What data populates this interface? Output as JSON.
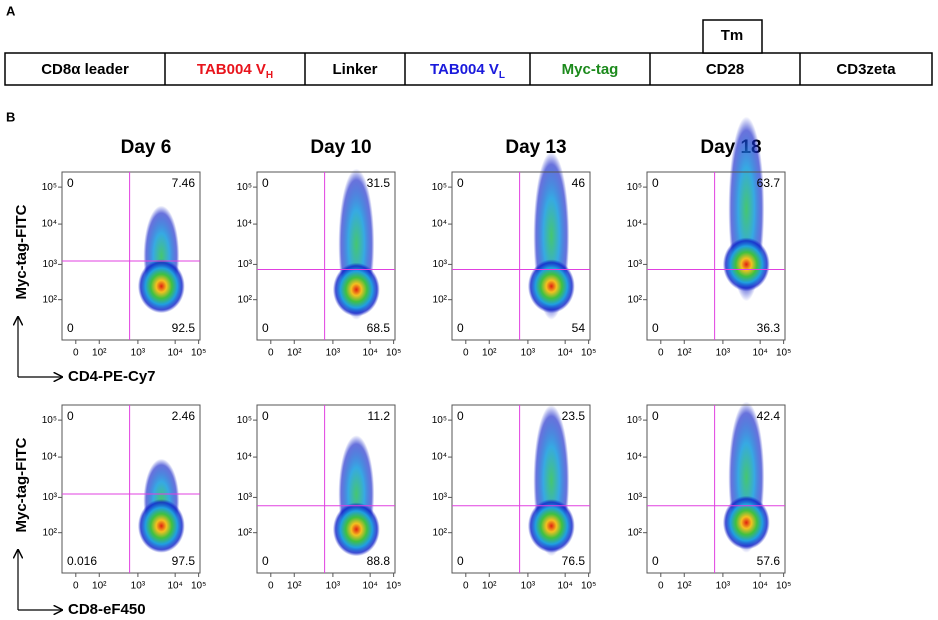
{
  "panel_a": {
    "label": "A",
    "tm": "Tm",
    "segments": [
      {
        "text": "CD8α leader",
        "color": "#000000"
      },
      {
        "text": "TAB004 V",
        "sub": "H",
        "color": "#e8141c"
      },
      {
        "text": "Linker",
        "color": "#000000"
      },
      {
        "text": "TAB004 V",
        "sub": "L",
        "color": "#1a1adc"
      },
      {
        "text": "Myc-tag",
        "color": "#1c8a1c"
      },
      {
        "text": "CD28",
        "color": "#000000"
      },
      {
        "text": "CD3zeta",
        "color": "#000000"
      }
    ]
  },
  "panel_b": {
    "label": "B",
    "days": [
      "Day 6",
      "Day 10",
      "Day 13",
      "Day 18"
    ],
    "x_ticks": [
      "0",
      "10²",
      "10³",
      "10⁴",
      "10⁵"
    ],
    "y_ticks": [
      "10²",
      "10³",
      "10⁴",
      "10⁵"
    ],
    "rows": [
      {
        "y_label": "Myc-tag-FITC",
        "x_label": "CD4-PE-Cy7",
        "plots": [
          {
            "ul": "0",
            "ur": "7.46",
            "ll": "0",
            "lr": "92.5"
          },
          {
            "ul": "0",
            "ur": "31.5",
            "ll": "0",
            "lr": "68.5"
          },
          {
            "ul": "0",
            "ur": "46",
            "ll": "0",
            "lr": "54"
          },
          {
            "ul": "0",
            "ur": "63.7",
            "ll": "0",
            "lr": "36.3"
          }
        ]
      },
      {
        "y_label": "Myc-tag-FITC",
        "x_label": "CD8-eF450",
        "plots": [
          {
            "ul": "0",
            "ur": "2.46",
            "ll": "0.016",
            "lr": "97.5"
          },
          {
            "ul": "0",
            "ur": "11.2",
            "ll": "0",
            "lr": "88.8"
          },
          {
            "ul": "0",
            "ur": "23.5",
            "ll": "0",
            "lr": "76.5"
          },
          {
            "ul": "0",
            "ur": "42.4",
            "ll": "0",
            "lr": "57.6"
          }
        ]
      }
    ]
  }
}
